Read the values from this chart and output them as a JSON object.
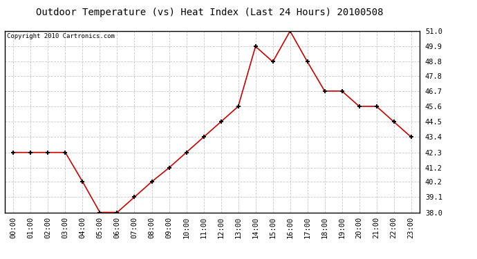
{
  "title": "Outdoor Temperature (vs) Heat Index (Last 24 Hours) 20100508",
  "copyright": "Copyright 2010 Cartronics.com",
  "x_labels": [
    "00:00",
    "01:00",
    "02:00",
    "03:00",
    "04:00",
    "05:00",
    "06:00",
    "07:00",
    "08:00",
    "09:00",
    "10:00",
    "11:00",
    "12:00",
    "13:00",
    "14:00",
    "15:00",
    "16:00",
    "17:00",
    "18:00",
    "19:00",
    "20:00",
    "21:00",
    "22:00",
    "23:00"
  ],
  "y_values": [
    42.3,
    42.3,
    42.3,
    42.3,
    40.2,
    38.0,
    38.0,
    39.1,
    40.2,
    41.2,
    42.3,
    43.4,
    44.5,
    45.6,
    49.9,
    48.8,
    51.0,
    48.8,
    46.7,
    46.7,
    45.6,
    45.6,
    44.5,
    43.4
  ],
  "line_color": "#cc0000",
  "marker_color": "#000000",
  "background_color": "#ffffff",
  "grid_color": "#c8c8c8",
  "y_min": 38.0,
  "y_max": 51.0,
  "y_ticks": [
    38.0,
    39.1,
    40.2,
    41.2,
    42.3,
    43.4,
    44.5,
    45.6,
    46.7,
    47.8,
    48.8,
    49.9,
    51.0
  ],
  "title_fontsize": 10,
  "copyright_fontsize": 6.5,
  "tick_fontsize": 7.5
}
